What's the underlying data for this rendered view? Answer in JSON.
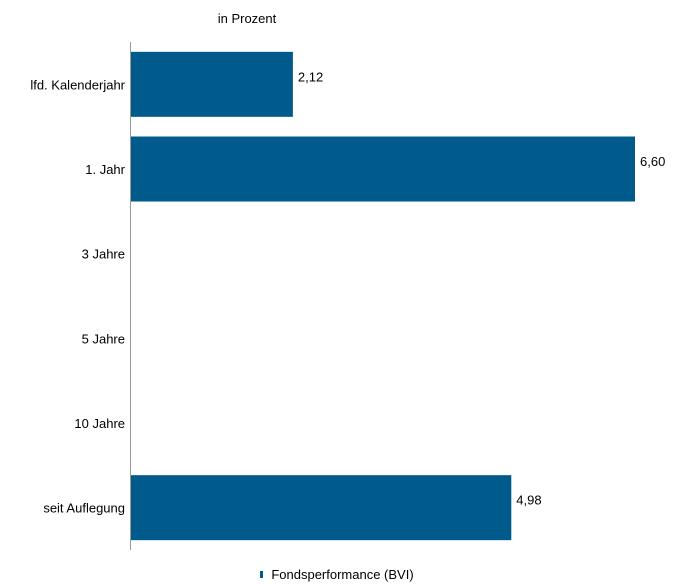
{
  "chart_data": {
    "type": "bar",
    "orientation": "horizontal",
    "unit_label": "in Prozent",
    "categories": [
      "lfd. Kalenderjahr",
      "1. Jahr",
      "3  Jahre",
      "5 Jahre",
      "10 Jahre",
      "seit Auflegung"
    ],
    "series": [
      {
        "name": "Fondsperformance (BVI)",
        "color": "#005a8c",
        "values": [
          2.12,
          6.6,
          null,
          null,
          null,
          4.98
        ],
        "value_labels": [
          "2,12",
          "6,60",
          "",
          "",
          "",
          "4,98"
        ]
      }
    ],
    "xlim": [
      0,
      6.6
    ],
    "grid": false,
    "legend_position": "bottom"
  }
}
